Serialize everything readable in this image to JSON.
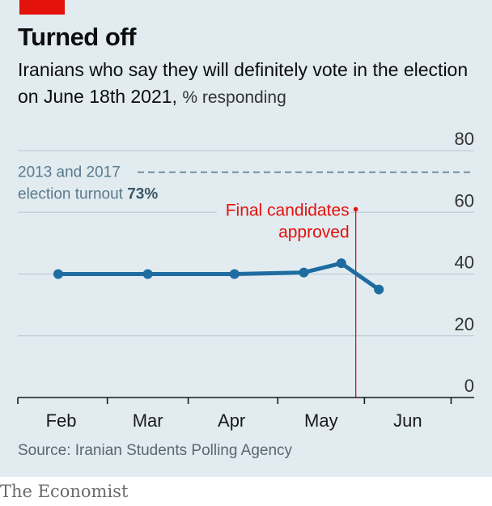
{
  "header": {
    "title": "Turned off",
    "subtitle": "Iranians who say they will definitely vote in the election on June 18th 2021,",
    "unit": "% responding"
  },
  "chart_data": {
    "type": "line",
    "title": "Turned off",
    "subtitle": "Iranians who say they will definitely vote in the election on June 18th 2021, % responding",
    "xlabel": "",
    "ylabel": "",
    "ylim": [
      0,
      80
    ],
    "yticks": [
      0,
      20,
      40,
      60,
      80
    ],
    "ytick_labels": [
      "0",
      "20",
      "40",
      "60",
      "80"
    ],
    "xlim_days": [
      0,
      158
    ],
    "month_ticks": [
      {
        "label": "Feb",
        "day": 0
      },
      {
        "label": "Mar",
        "day": 31
      },
      {
        "label": "Apr",
        "day": 59
      },
      {
        "label": "May",
        "day": 90
      },
      {
        "label": "Jun",
        "day": 120
      },
      {
        "label": "",
        "day": 150
      }
    ],
    "month_labels": [
      {
        "label": "Feb",
        "day": 15
      },
      {
        "label": "Mar",
        "day": 45
      },
      {
        "label": "Apr",
        "day": 74
      },
      {
        "label": "May",
        "day": 105
      },
      {
        "label": "Jun",
        "day": 135
      }
    ],
    "series": [
      {
        "name": "",
        "color": "#1f6ca1",
        "points": [
          {
            "day": 14,
            "value": 40
          },
          {
            "day": 45,
            "value": 40
          },
          {
            "day": 75,
            "value": 40
          },
          {
            "day": 99,
            "value": 40.5
          },
          {
            "day": 112,
            "value": 43.5
          },
          {
            "day": 125,
            "value": 35
          }
        ]
      }
    ],
    "reference_line": {
      "value": 73,
      "label_line1": "2013 and 2017",
      "label_line2_prefix": "election turnout ",
      "label_line2_value": "73%",
      "color": "#5b7a8c"
    },
    "annotation": {
      "day": 117,
      "value": 61,
      "label_line1": "Final candidates",
      "label_line2": "approved",
      "color": "#e3120b"
    },
    "grid": true
  },
  "footer": {
    "source": "Source: Iranian Students Polling Agency",
    "brand": "The Economist"
  },
  "colors": {
    "background": "#e1ebf0",
    "accent": "#e3120b",
    "line": "#1f6ca1"
  }
}
